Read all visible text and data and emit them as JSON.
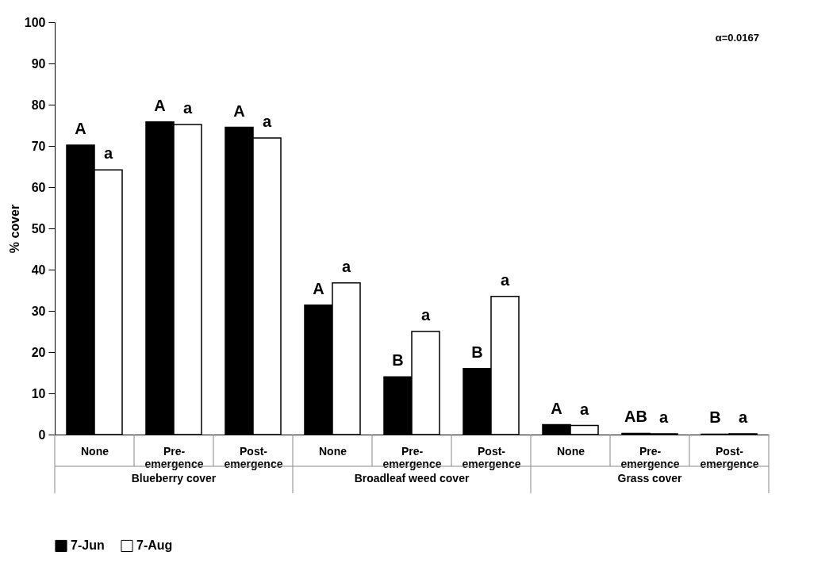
{
  "chart_data": {
    "type": "bar",
    "ylabel": "% cover",
    "categories": [
      "None",
      "Pre-emergence",
      "Post-emergence",
      "None",
      "Pre-emergence",
      "Post-emergence",
      "None",
      "Pre-emergence",
      "Post-emergence"
    ],
    "series": [
      {
        "name": "7-Jun",
        "color": "#000000",
        "values": [
          70.2,
          75.8,
          74.5,
          31.4,
          14.0,
          16.0,
          2.4,
          0.3,
          0.1
        ],
        "value_labels": [
          "A",
          "A",
          "A",
          "A",
          "B",
          "B",
          "A",
          "AB",
          "B"
        ]
      },
      {
        "name": "7-Aug",
        "color": "#ffffff",
        "values": [
          64.2,
          75.2,
          71.9,
          36.8,
          25.0,
          33.5,
          2.2,
          0.2,
          0.2
        ],
        "value_labels": [
          "a",
          "a",
          "a",
          "a",
          "a",
          "a",
          "a",
          "a",
          "a"
        ]
      }
    ],
    "ylim": [
      0,
      100
    ],
    "yticks": [
      0,
      10,
      20,
      30,
      40,
      50,
      60,
      70,
      80,
      90,
      100
    ],
    "grid": false,
    "legend": "bottom",
    "annotations": [
      "α=0.0167",
      "Blueberry cover",
      "Broadleaf weed cover",
      "Grass cover"
    ]
  }
}
